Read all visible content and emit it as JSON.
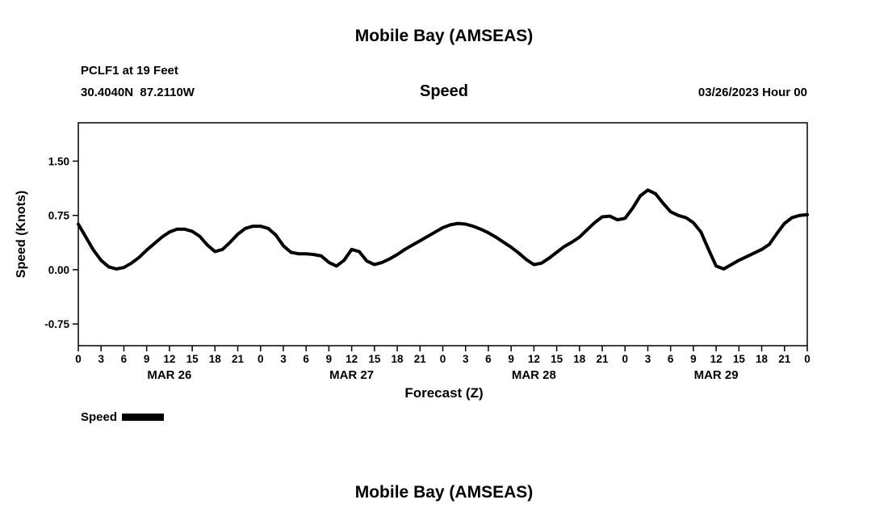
{
  "page": {
    "title": "Mobile Bay (AMSEAS)",
    "bottom_title": "Mobile Bay (AMSEAS)"
  },
  "chart": {
    "station_line1": "PCLF1 at 19 Feet",
    "station_line2": "30.4040N  87.2110W",
    "center_title": "Speed",
    "date_label": "03/26/2023 Hour 00",
    "ylabel": "Speed (Knots)",
    "xlabel": "Forecast (Z)",
    "legend_label": "Speed"
  },
  "chart_data": {
    "type": "line",
    "title": "Mobile Bay (AMSEAS)",
    "subtitle": "Speed",
    "station": "PCLF1 at 19 Feet",
    "location": "30.4040N 87.2110W",
    "model_run": "03/26/2023 Hour 00",
    "xlabel": "Forecast (Z)",
    "ylabel": "Speed (Knots)",
    "xlim": [
      0,
      96
    ],
    "ylim": [
      -1.05,
      2.03
    ],
    "yticks": [
      -0.75,
      0,
      0.75,
      1.5
    ],
    "ytick_labels": [
      "-0.75",
      "0.00",
      "0.75",
      "1.50"
    ],
    "xtick_step_hours": 3,
    "xtick_labels": [
      "0",
      "3",
      "6",
      "9",
      "12",
      "15",
      "18",
      "21",
      "0",
      "3",
      "6",
      "9",
      "12",
      "15",
      "18",
      "21",
      "0",
      "3",
      "6",
      "9",
      "12",
      "15",
      "18",
      "21",
      "0",
      "3",
      "6",
      "9",
      "12",
      "15",
      "18",
      "21",
      "0"
    ],
    "day_labels": [
      {
        "label": "MAR 26",
        "hour": 12
      },
      {
        "label": "MAR 27",
        "hour": 36
      },
      {
        "label": "MAR 28",
        "hour": 60
      },
      {
        "label": "MAR 29",
        "hour": 84
      }
    ],
    "grid": false,
    "legend_position": "bottom-left",
    "series": [
      {
        "name": "Speed",
        "color": "#000000",
        "line_width": 4,
        "x_step": 1,
        "values": [
          0.63,
          0.45,
          0.27,
          0.13,
          0.04,
          0.01,
          0.03,
          0.09,
          0.17,
          0.27,
          0.36,
          0.45,
          0.52,
          0.56,
          0.56,
          0.53,
          0.46,
          0.34,
          0.25,
          0.28,
          0.38,
          0.49,
          0.57,
          0.6,
          0.6,
          0.57,
          0.48,
          0.33,
          0.24,
          0.22,
          0.22,
          0.21,
          0.19,
          0.1,
          0.05,
          0.13,
          0.28,
          0.25,
          0.12,
          0.07,
          0.1,
          0.15,
          0.21,
          0.28,
          0.34,
          0.4,
          0.46,
          0.52,
          0.58,
          0.62,
          0.64,
          0.63,
          0.6,
          0.56,
          0.51,
          0.45,
          0.38,
          0.31,
          0.23,
          0.14,
          0.07,
          0.09,
          0.16,
          0.24,
          0.32,
          0.38,
          0.45,
          0.55,
          0.65,
          0.73,
          0.74,
          0.69,
          0.71,
          0.85,
          1.02,
          1.1,
          1.05,
          0.92,
          0.8,
          0.75,
          0.72,
          0.65,
          0.52,
          0.28,
          0.05,
          0.01,
          0.07,
          0.13,
          0.18,
          0.23,
          0.28,
          0.35,
          0.5,
          0.64,
          0.72,
          0.75,
          0.76
        ]
      }
    ]
  }
}
